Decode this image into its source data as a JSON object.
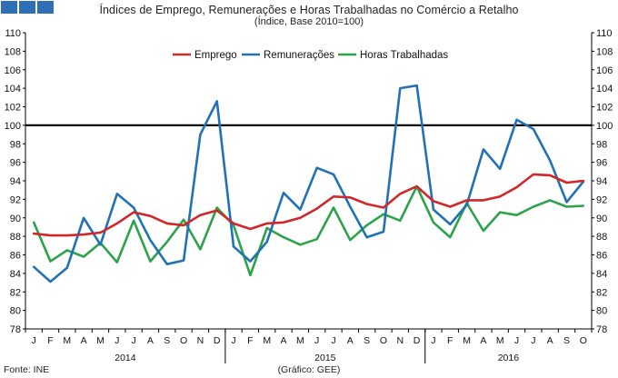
{
  "header": {
    "title": "Índices de Emprego, Remunerações e Horas Trabalhadas no Comércio a Retalho",
    "subtitle": "(Índice, Base 2010=100)"
  },
  "footer": {
    "source": "Fonte: INE",
    "credit": "(Gráfico: GEE)"
  },
  "colors": {
    "emprego": "#d0282a",
    "remuneracoes": "#2171b5",
    "horas": "#2ba34b",
    "reference": "#000000",
    "logo": "#2e6fb7"
  },
  "chart_data": {
    "type": "line",
    "title": "Índices de Emprego, Remunerações e Horas Trabalhadas no Comércio a Retalho",
    "subtitle": "(Índice, Base 2010=100)",
    "categories": [
      "J",
      "F",
      "M",
      "A",
      "M",
      "J",
      "J",
      "A",
      "S",
      "O",
      "N",
      "D",
      "J",
      "F",
      "M",
      "A",
      "M",
      "J",
      "J",
      "A",
      "S",
      "O",
      "N",
      "D",
      "J",
      "F",
      "M",
      "A",
      "M",
      "J",
      "J",
      "A",
      "S",
      "O"
    ],
    "years": [
      {
        "label": "2014",
        "start": 0,
        "count": 12
      },
      {
        "label": "2015",
        "start": 12,
        "count": 12
      },
      {
        "label": "2016",
        "start": 24,
        "count": 10
      }
    ],
    "ylim": [
      78,
      110
    ],
    "yticks": [
      78,
      80,
      82,
      84,
      86,
      88,
      90,
      92,
      94,
      96,
      98,
      100,
      102,
      104,
      106,
      108,
      110
    ],
    "reference_line": 100,
    "legend_position": "top-center",
    "series": [
      {
        "name": "Emprego",
        "color_key": "emprego",
        "values": [
          88.3,
          88.1,
          88.1,
          88.2,
          88.4,
          89.4,
          90.6,
          90.2,
          89.4,
          89.2,
          90.3,
          90.8,
          89.4,
          88.8,
          89.4,
          89.5,
          90.0,
          91.0,
          92.3,
          92.2,
          91.5,
          91.1,
          92.6,
          93.4,
          91.8,
          91.2,
          91.9,
          91.9,
          92.3,
          93.3,
          94.7,
          94.6,
          93.8,
          94.0
        ]
      },
      {
        "name": "Remunerações",
        "color_key": "remuneracoes",
        "values": [
          84.7,
          83.1,
          84.6,
          90.0,
          87.1,
          92.6,
          91.1,
          87.6,
          85.0,
          85.4,
          99.0,
          102.6,
          86.9,
          85.3,
          87.4,
          92.7,
          90.9,
          95.4,
          94.7,
          91.2,
          87.9,
          88.5,
          104.0,
          104.3,
          90.9,
          89.3,
          91.4,
          97.4,
          95.3,
          100.6,
          99.6,
          96.2,
          91.7,
          93.9
        ]
      },
      {
        "name": "Horas Trabalhadas",
        "color_key": "horas",
        "values": [
          89.5,
          85.3,
          86.5,
          85.8,
          87.3,
          85.2,
          89.7,
          85.3,
          87.4,
          89.8,
          86.6,
          91.1,
          89.2,
          83.8,
          88.9,
          87.9,
          87.1,
          87.7,
          91.1,
          87.6,
          89.2,
          90.4,
          89.7,
          93.4,
          89.5,
          87.9,
          91.6,
          88.6,
          90.6,
          90.3,
          91.2,
          91.9,
          91.2,
          91.3
        ]
      }
    ]
  }
}
